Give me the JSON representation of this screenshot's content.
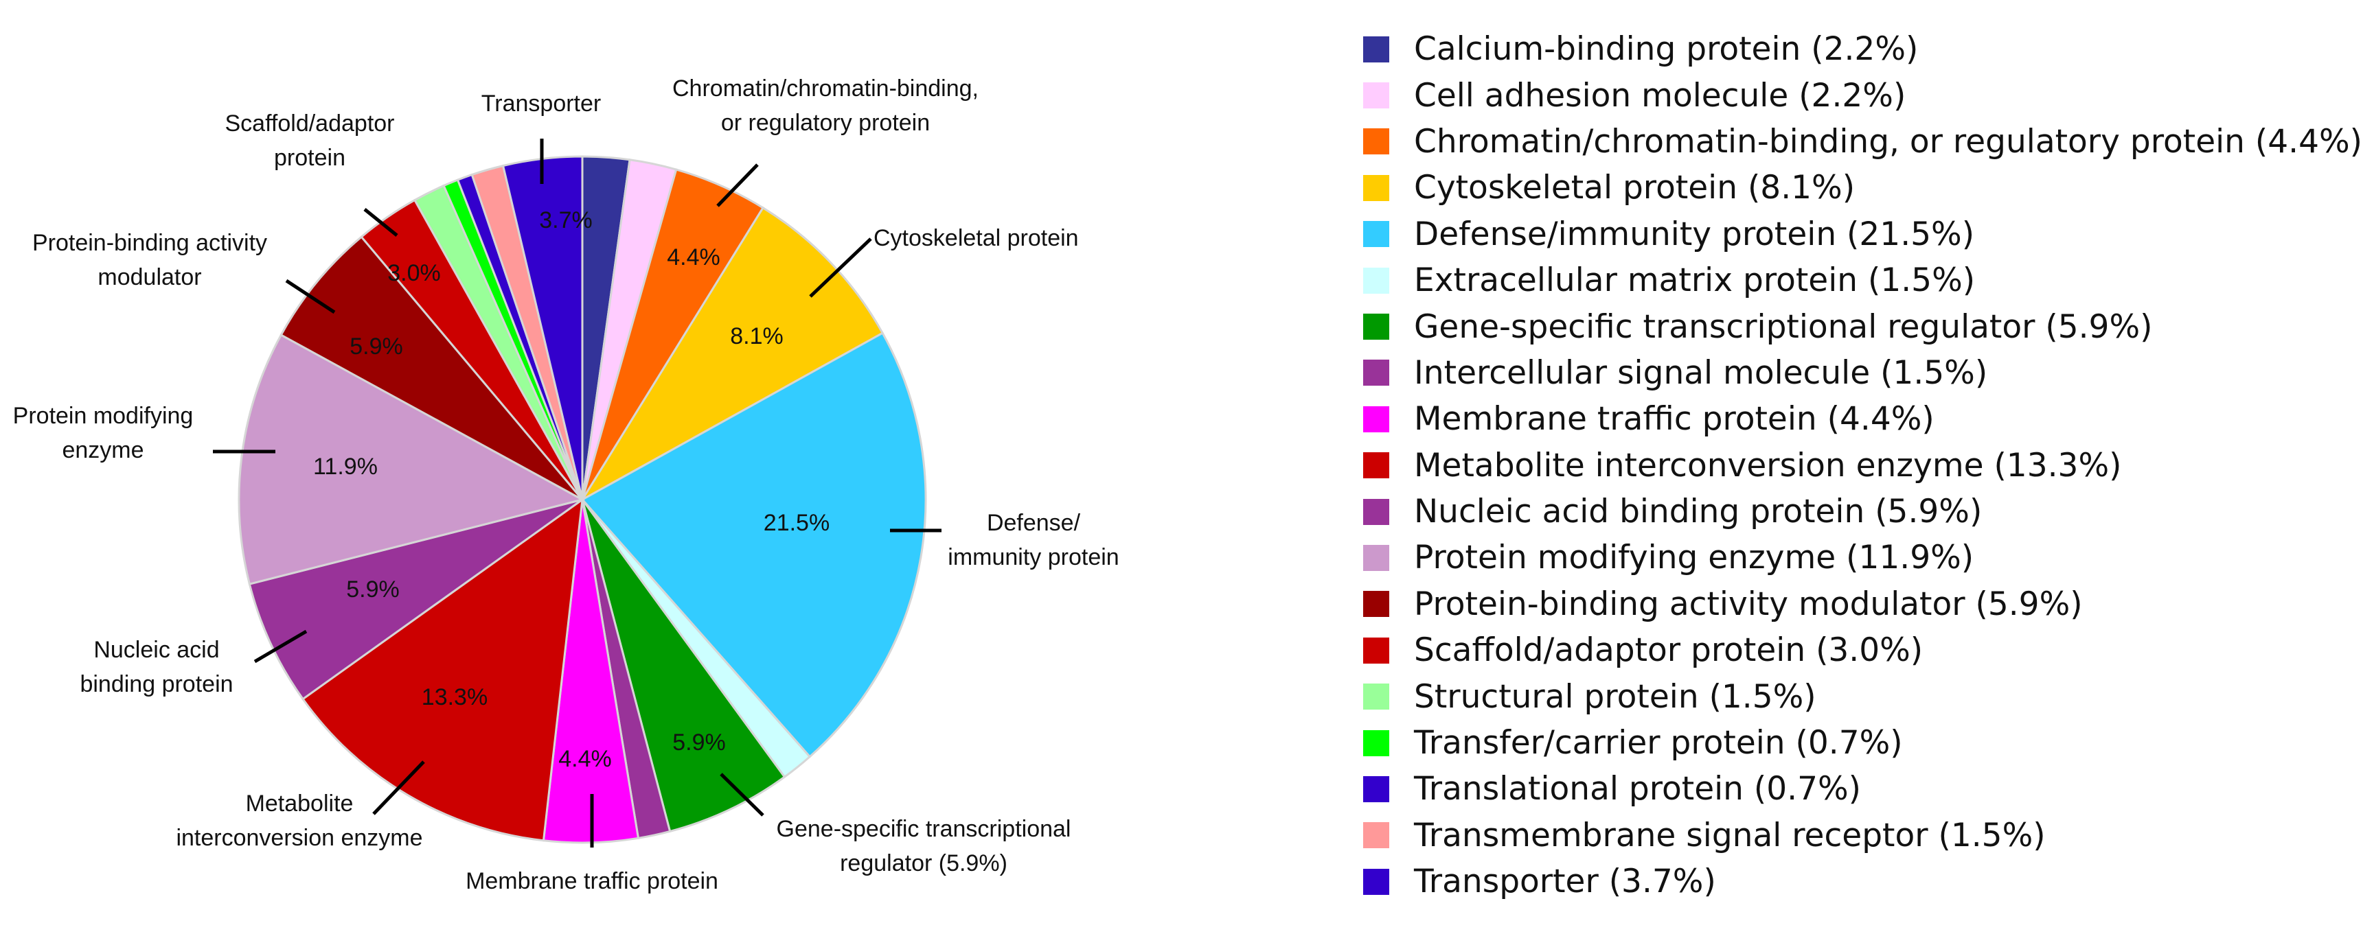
{
  "chart_data": {
    "type": "pie",
    "slices": [
      {
        "name": "Calcium-binding protein",
        "value": 2.2,
        "color": "#333399",
        "legend_label": "Calcium-binding protein (2.2%)"
      },
      {
        "name": "Cell adhesion molecule",
        "value": 2.2,
        "color": "#FFCCFF",
        "legend_label": "Cell adhesion molecule (2.2%)"
      },
      {
        "name": "Chromatin/chromatin-binding, or regulatory protein",
        "value": 4.4,
        "color": "#FF6600",
        "legend_label": "Chromatin/chromatin-binding, or regulatory protein (4.4%)",
        "data_label": "4.4%"
      },
      {
        "name": "Cytoskeletal protein",
        "value": 8.1,
        "color": "#FFCC00",
        "legend_label": "Cytoskeletal protein (8.1%)",
        "data_label": "8.1%"
      },
      {
        "name": "Defense/immunity protein",
        "value": 21.5,
        "color": "#33CCFF",
        "legend_label": "Defense/immunity protein (21.5%)",
        "data_label": "21.5%"
      },
      {
        "name": "Extracellular matrix protein",
        "value": 1.5,
        "color": "#CCFFFF",
        "legend_label": "Extracellular matrix protein (1.5%)"
      },
      {
        "name": "Gene-specific transcriptional regulator",
        "value": 5.9,
        "color": "#009900",
        "legend_label": "Gene-specific transcriptional regulator (5.9%)",
        "data_label": "5.9%"
      },
      {
        "name": "Intercellular signal molecule",
        "value": 1.5,
        "color": "#993399",
        "legend_label": "Intercellular signal molecule (1.5%)"
      },
      {
        "name": "Membrane traffic protein",
        "value": 4.4,
        "color": "#FF00FF",
        "legend_label": "Membrane traffic protein (4.4%)",
        "data_label": "4.4%"
      },
      {
        "name": "Metabolite interconversion enzyme",
        "value": 13.3,
        "color": "#CC0000",
        "legend_label": "Metabolite interconversion enzyme (13.3%)",
        "data_label": "13.3%"
      },
      {
        "name": "Nucleic acid binding protein",
        "value": 5.9,
        "color": "#993399",
        "legend_label": "Nucleic acid binding protein (5.9%)",
        "data_label": "5.9%"
      },
      {
        "name": "Protein modifying enzyme",
        "value": 11.9,
        "color": "#CC99CC",
        "legend_label": "Protein modifying enzyme (11.9%)",
        "data_label": "11.9%"
      },
      {
        "name": "Protein-binding activity modulator",
        "value": 5.9,
        "color": "#990000",
        "legend_label": "Protein-binding activity modulator (5.9%)",
        "data_label": "5.9%"
      },
      {
        "name": "Scaffold/adaptor protein",
        "value": 3.0,
        "color": "#CC0000",
        "legend_label": "Scaffold/adaptor protein (3.0%)",
        "data_label": "3.0%"
      },
      {
        "name": "Structural protein",
        "value": 1.5,
        "color": "#99FF99",
        "legend_label": "Structural protein (1.5%)"
      },
      {
        "name": "Transfer/carrier protein",
        "value": 0.7,
        "color": "#00FF00",
        "legend_label": "Transfer/carrier protein (0.7%)"
      },
      {
        "name": "Translational protein",
        "value": 0.7,
        "color": "#3300CC",
        "legend_label": "Translational protein (0.7%)"
      },
      {
        "name": "Transmembrane signal receptor",
        "value": 1.5,
        "color": "#FF9999",
        "legend_label": "Transmembrane signal receptor (1.5%)"
      },
      {
        "name": "Transporter",
        "value": 3.7,
        "color": "#3300CC",
        "legend_label": "Transporter (3.7%)",
        "data_label": "3.7%"
      }
    ],
    "callouts": [
      {
        "slice": "Chromatin/chromatin-binding, or regulatory protein",
        "lines": [
          "Chromatin/chromatin-binding,",
          "or regulatory protein"
        ]
      },
      {
        "slice": "Cytoskeletal protein",
        "lines": [
          "Cytoskeletal protein"
        ]
      },
      {
        "slice": "Defense/immunity protein",
        "lines": [
          "Defense/",
          "immunity protein"
        ]
      },
      {
        "slice": "Gene-specific transcriptional regulator",
        "lines": [
          "Gene-specific transcriptional",
          "regulator (5.9%)"
        ]
      },
      {
        "slice": "Membrane traffic protein",
        "lines": [
          "Membrane traffic protein"
        ]
      },
      {
        "slice": "Metabolite interconversion enzyme",
        "lines": [
          "Metabolite",
          "interconversion enzyme"
        ]
      },
      {
        "slice": "Nucleic acid binding protein",
        "lines": [
          "Nucleic acid",
          "binding protein"
        ]
      },
      {
        "slice": "Protein modifying enzyme",
        "lines": [
          "Protein modifying",
          "enzyme"
        ]
      },
      {
        "slice": "Protein-binding activity modulator",
        "lines": [
          "Protein-binding activity",
          "modulator"
        ]
      },
      {
        "slice": "Scaffold/adaptor protein",
        "lines": [
          "Scaffold/adaptor",
          "protein"
        ]
      },
      {
        "slice": "Transporter",
        "lines": [
          "Transporter"
        ]
      }
    ],
    "start_angle_deg": 0,
    "direction": "clockwise"
  }
}
